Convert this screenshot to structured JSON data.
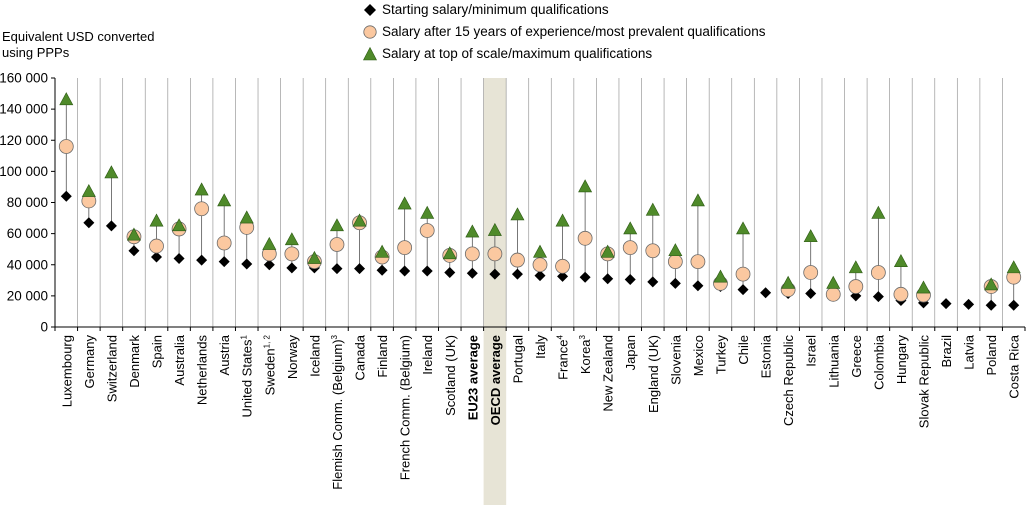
{
  "chart_data": {
    "type": "scatter",
    "ylabel": "Equivalent USD converted\nusing PPPs",
    "ylim": [
      0,
      160000
    ],
    "yticks": [
      0,
      20000,
      40000,
      60000,
      80000,
      100000,
      120000,
      140000,
      160000
    ],
    "ytick_labels": [
      "0",
      "20 000",
      "40 000",
      "60 000",
      "80 000",
      "100 000",
      "120 000",
      "140 000",
      "160 000"
    ],
    "grid": "vertical",
    "legend_position": "top",
    "highlight_category": "OECD average",
    "bold_categories": [
      "EU23 average",
      "OECD average"
    ],
    "categories": [
      {
        "name": "Luxembourg",
        "sup": ""
      },
      {
        "name": "Germany",
        "sup": ""
      },
      {
        "name": "Switzerland",
        "sup": ""
      },
      {
        "name": "Denmark",
        "sup": ""
      },
      {
        "name": "Spain",
        "sup": ""
      },
      {
        "name": "Australia",
        "sup": ""
      },
      {
        "name": "Netherlands",
        "sup": ""
      },
      {
        "name": "Austria",
        "sup": ""
      },
      {
        "name": "United States",
        "sup": "1"
      },
      {
        "name": "Sweden",
        "sup": "1, 2"
      },
      {
        "name": "Norway",
        "sup": ""
      },
      {
        "name": "Iceland",
        "sup": ""
      },
      {
        "name": "Flemish Comm. (Belgium)",
        "sup": "3"
      },
      {
        "name": "Canada",
        "sup": ""
      },
      {
        "name": "Finland",
        "sup": ""
      },
      {
        "name": "French Comm. (Belgium)",
        "sup": ""
      },
      {
        "name": "Ireland",
        "sup": ""
      },
      {
        "name": "Scotland (UK)",
        "sup": ""
      },
      {
        "name": "EU23 average",
        "sup": ""
      },
      {
        "name": "OECD average",
        "sup": ""
      },
      {
        "name": "Portugal",
        "sup": ""
      },
      {
        "name": "Italy",
        "sup": ""
      },
      {
        "name": "France",
        "sup": "4"
      },
      {
        "name": "Korea",
        "sup": "3"
      },
      {
        "name": "New Zealand",
        "sup": ""
      },
      {
        "name": "Japan",
        "sup": ""
      },
      {
        "name": "England (UK)",
        "sup": ""
      },
      {
        "name": "Slovenia",
        "sup": ""
      },
      {
        "name": "Mexico",
        "sup": ""
      },
      {
        "name": "Turkey",
        "sup": ""
      },
      {
        "name": "Chile",
        "sup": ""
      },
      {
        "name": "Estonia",
        "sup": ""
      },
      {
        "name": "Czech Republic",
        "sup": ""
      },
      {
        "name": "Israel",
        "sup": ""
      },
      {
        "name": "Lithuania",
        "sup": ""
      },
      {
        "name": "Greece",
        "sup": ""
      },
      {
        "name": "Colombia",
        "sup": ""
      },
      {
        "name": "Hungary",
        "sup": ""
      },
      {
        "name": "Slovak Republic",
        "sup": ""
      },
      {
        "name": "Brazil",
        "sup": ""
      },
      {
        "name": "Latvia",
        "sup": ""
      },
      {
        "name": "Poland",
        "sup": ""
      },
      {
        "name": "Costa Rica",
        "sup": ""
      }
    ],
    "series": [
      {
        "name": "Starting salary/minimum qualifications",
        "marker": "diamond",
        "color": "#000000",
        "values": [
          84000,
          67000,
          65000,
          49000,
          45000,
          44000,
          43000,
          42000,
          40500,
          40000,
          38000,
          38000,
          37500,
          37500,
          36500,
          36000,
          36000,
          35000,
          34500,
          34000,
          34000,
          33000,
          32500,
          32000,
          31000,
          30500,
          29000,
          28000,
          26500,
          26000,
          24000,
          22000,
          21500,
          21500,
          20000,
          20000,
          19500,
          17000,
          15500,
          15000,
          14500,
          14000,
          14000
        ]
      },
      {
        "name": "Salary after 15 years of experience/most prevalent qualifications",
        "marker": "circle",
        "color": "#fbc8a0",
        "values": [
          116000,
          81000,
          null,
          58000,
          52000,
          63000,
          76000,
          54000,
          64000,
          47000,
          47000,
          42000,
          53000,
          67000,
          45000,
          51000,
          62000,
          46000,
          47000,
          47000,
          43000,
          40000,
          39000,
          57000,
          47000,
          51000,
          49000,
          42000,
          42000,
          28000,
          34000,
          null,
          24000,
          35000,
          21000,
          26000,
          35000,
          21000,
          20500,
          null,
          null,
          26000,
          32000
        ]
      },
      {
        "name": "Salary at top of scale/maximum qualifications",
        "marker": "triangle",
        "color": "#4f8a2a",
        "values": [
          146000,
          87000,
          99000,
          59000,
          68000,
          65000,
          88000,
          81000,
          70000,
          53000,
          56000,
          44000,
          65000,
          68000,
          48000,
          79000,
          73000,
          47000,
          61000,
          62000,
          72000,
          48000,
          68000,
          90000,
          48000,
          63000,
          75000,
          49000,
          81000,
          32000,
          63000,
          null,
          28000,
          58000,
          28000,
          38000,
          73000,
          42000,
          25000,
          null,
          null,
          27000,
          38000
        ]
      }
    ]
  }
}
